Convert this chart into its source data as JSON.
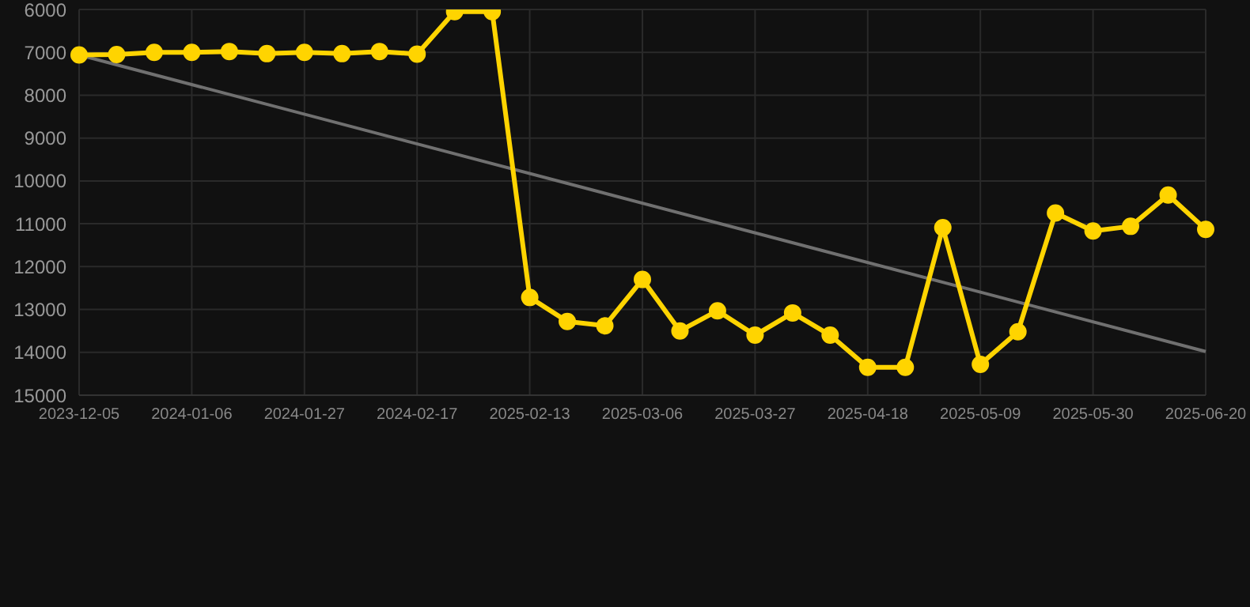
{
  "chart_data": {
    "type": "line",
    "categories": [
      "2023-12-05",
      null,
      null,
      "2024-01-06",
      null,
      null,
      "2024-01-27",
      null,
      null,
      "2024-02-17",
      null,
      null,
      "2025-02-13",
      null,
      null,
      "2025-03-06",
      null,
      null,
      "2025-03-27",
      null,
      null,
      "2025-04-18",
      null,
      null,
      "2025-05-09",
      null,
      null,
      "2025-05-30",
      null,
      null,
      "2025-06-20"
    ],
    "series": [
      {
        "color": "#ffd400",
        "marker": "circle",
        "values": [
          7060,
          7050,
          7000,
          7000,
          6980,
          7030,
          7000,
          7030,
          6980,
          7040,
          6050,
          6050,
          12720,
          13280,
          13380,
          12300,
          13500,
          13030,
          13600,
          13080,
          13600,
          14350,
          14350,
          11090,
          14280,
          13520,
          10750,
          11170,
          11060,
          10330,
          11130
        ]
      },
      {
        "color": "#707070",
        "marker": "none",
        "values": [
          7060,
          null,
          null,
          null,
          null,
          null,
          null,
          null,
          null,
          null,
          null,
          null,
          null,
          null,
          null,
          null,
          null,
          null,
          null,
          null,
          null,
          null,
          null,
          null,
          null,
          null,
          null,
          null,
          null,
          null,
          13980
        ]
      }
    ],
    "ylim": [
      15000,
      6000
    ],
    "yticks": [
      6000,
      7000,
      8000,
      9000,
      10000,
      11000,
      12000,
      13000,
      14000,
      15000
    ],
    "grid": true
  }
}
